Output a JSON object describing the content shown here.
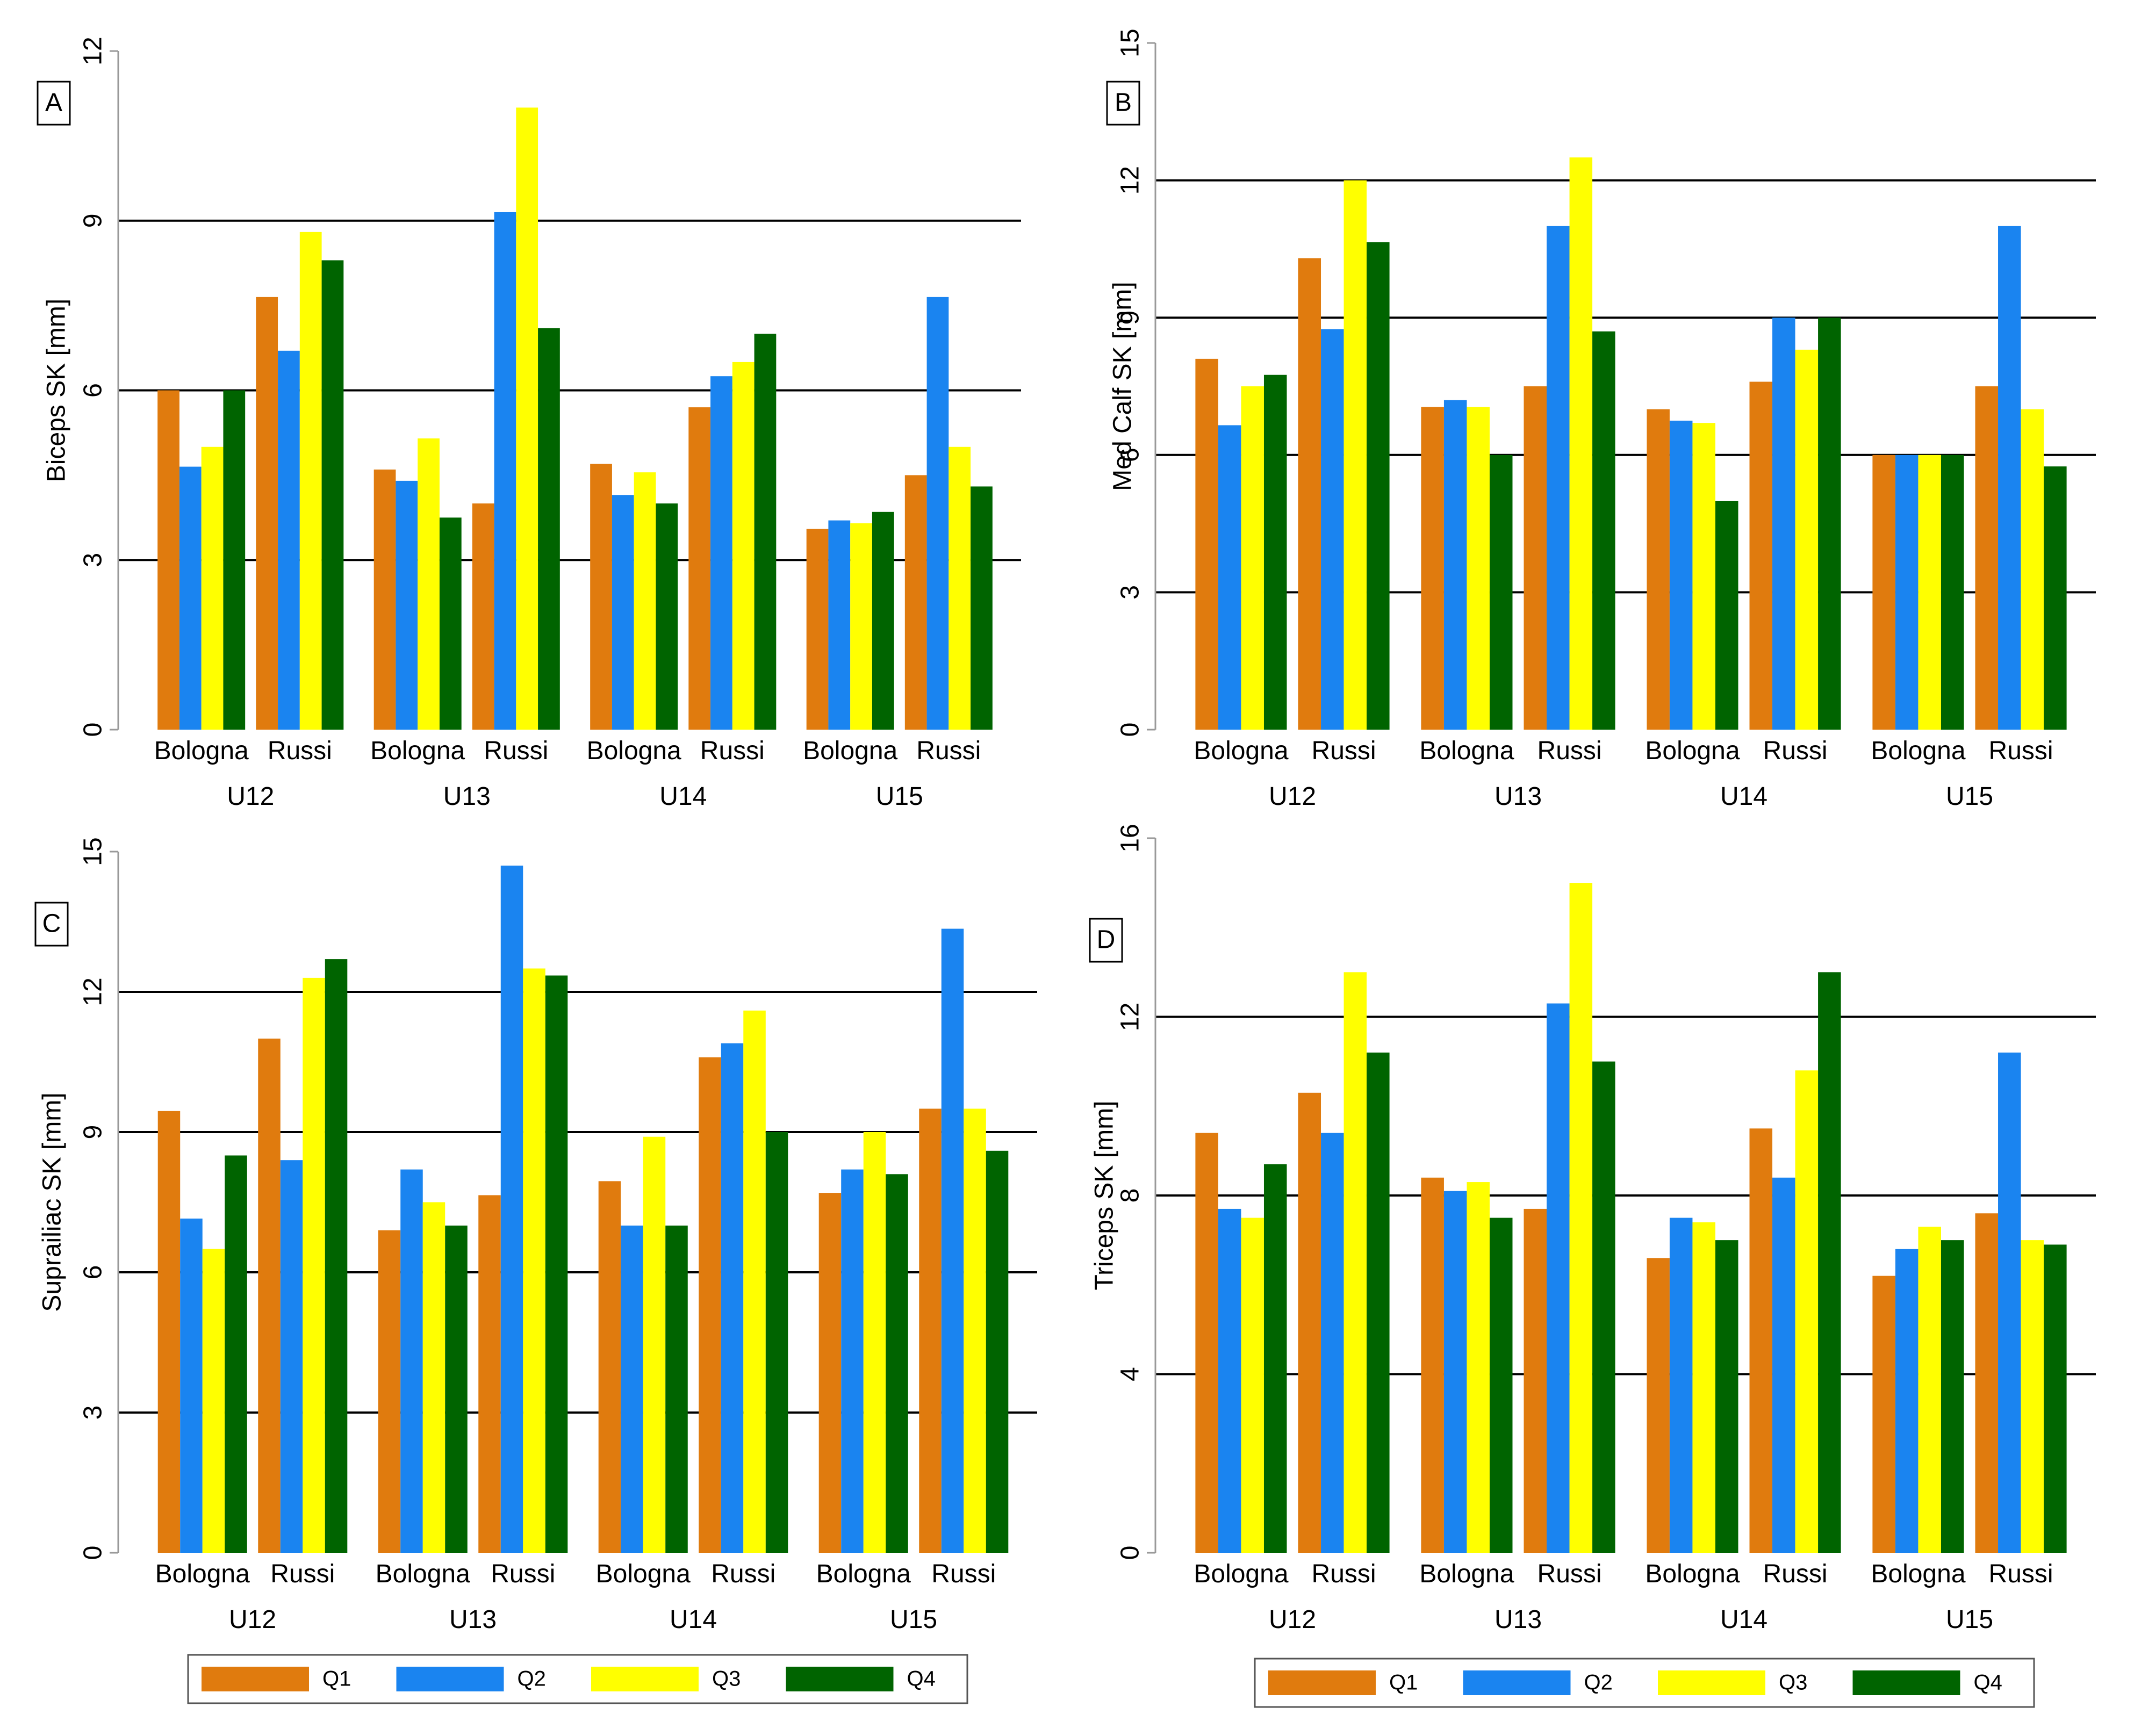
{
  "colors": {
    "Q1": "#e07b0e",
    "Q2": "#1a84f0",
    "Q3": "#ffff00",
    "Q4": "#006400",
    "grid": "#000000",
    "axis": "#999999",
    "text": "#000000"
  },
  "legend": {
    "items": [
      "Q1",
      "Q2",
      "Q3",
      "Q4"
    ]
  },
  "chart_data": [
    {
      "panel_label": "A",
      "type": "bar",
      "ylabel": "Biceps SK [mm]",
      "ylim": [
        0,
        12
      ],
      "yticks": [
        0,
        3,
        6,
        9,
        12
      ],
      "grid": true,
      "groups": [
        "U12",
        "U13",
        "U14",
        "U15"
      ],
      "subgroups": [
        "Bologna",
        "Russi"
      ],
      "series": [
        {
          "name": "Q1",
          "values": [
            6.0,
            7.65,
            4.6,
            4.0,
            4.7,
            5.7,
            3.55,
            4.5
          ]
        },
        {
          "name": "Q2",
          "values": [
            4.65,
            6.7,
            4.4,
            9.15,
            4.15,
            6.25,
            3.7,
            7.65
          ]
        },
        {
          "name": "Q3",
          "values": [
            5.0,
            8.8,
            5.15,
            11.0,
            4.55,
            6.5,
            3.65,
            5.0
          ]
        },
        {
          "name": "Q4",
          "values": [
            6.0,
            8.3,
            3.75,
            7.1,
            4.0,
            7.0,
            3.85,
            4.3
          ]
        }
      ]
    },
    {
      "panel_label": "B",
      "type": "bar",
      "ylabel": "Med Calf SK [mm]",
      "ylim": [
        0,
        15
      ],
      "yticks": [
        0,
        3,
        6,
        9,
        12,
        15
      ],
      "grid": true,
      "groups": [
        "U12",
        "U13",
        "U14",
        "U15"
      ],
      "subgroups": [
        "Bologna",
        "Russi"
      ],
      "series": [
        {
          "name": "Q1",
          "values": [
            8.1,
            10.3,
            7.05,
            7.5,
            7.0,
            7.6,
            6.0,
            7.5
          ]
        },
        {
          "name": "Q2",
          "values": [
            6.65,
            8.75,
            7.2,
            11.0,
            6.75,
            9.0,
            6.0,
            11.0
          ]
        },
        {
          "name": "Q3",
          "values": [
            7.5,
            12.0,
            7.05,
            12.5,
            6.7,
            8.3,
            6.0,
            7.0
          ]
        },
        {
          "name": "Q4",
          "values": [
            7.75,
            10.65,
            6.0,
            8.7,
            5.0,
            9.0,
            6.0,
            5.75
          ]
        }
      ]
    },
    {
      "panel_label": "C",
      "type": "bar",
      "ylabel": "Suprailiac SK [mm]",
      "ylim": [
        0,
        15
      ],
      "yticks": [
        0,
        3,
        6,
        9,
        12,
        15
      ],
      "grid": true,
      "groups": [
        "U12",
        "U13",
        "U14",
        "U15"
      ],
      "subgroups": [
        "Bologna",
        "Russi"
      ],
      "series": [
        {
          "name": "Q1",
          "values": [
            9.45,
            11.0,
            6.9,
            7.65,
            7.95,
            10.6,
            7.7,
            9.5
          ]
        },
        {
          "name": "Q2",
          "values": [
            7.15,
            8.4,
            8.2,
            14.7,
            7.0,
            10.9,
            8.2,
            13.35
          ]
        },
        {
          "name": "Q3",
          "values": [
            6.5,
            12.3,
            7.5,
            12.5,
            8.9,
            11.6,
            9.0,
            9.5
          ]
        },
        {
          "name": "Q4",
          "values": [
            8.5,
            12.7,
            7.0,
            12.35,
            7.0,
            9.0,
            8.1,
            8.6
          ]
        }
      ]
    },
    {
      "panel_label": "D",
      "type": "bar",
      "ylabel": "Triceps SK [mm]",
      "ylim": [
        0,
        16
      ],
      "yticks": [
        0,
        4,
        8,
        12,
        16
      ],
      "grid": true,
      "groups": [
        "U12",
        "U13",
        "U14",
        "U15"
      ],
      "subgroups": [
        "Bologna",
        "Russi"
      ],
      "series": [
        {
          "name": "Q1",
          "values": [
            9.4,
            10.3,
            8.4,
            7.7,
            6.6,
            9.5,
            6.2,
            7.6
          ]
        },
        {
          "name": "Q2",
          "values": [
            7.7,
            9.4,
            8.1,
            12.3,
            7.5,
            8.4,
            6.8,
            11.2
          ]
        },
        {
          "name": "Q3",
          "values": [
            7.5,
            13.0,
            8.3,
            15.0,
            7.4,
            10.8,
            7.3,
            7.0
          ]
        },
        {
          "name": "Q4",
          "values": [
            8.7,
            11.2,
            7.5,
            11.0,
            7.0,
            13.0,
            7.0,
            6.9
          ]
        }
      ]
    }
  ]
}
